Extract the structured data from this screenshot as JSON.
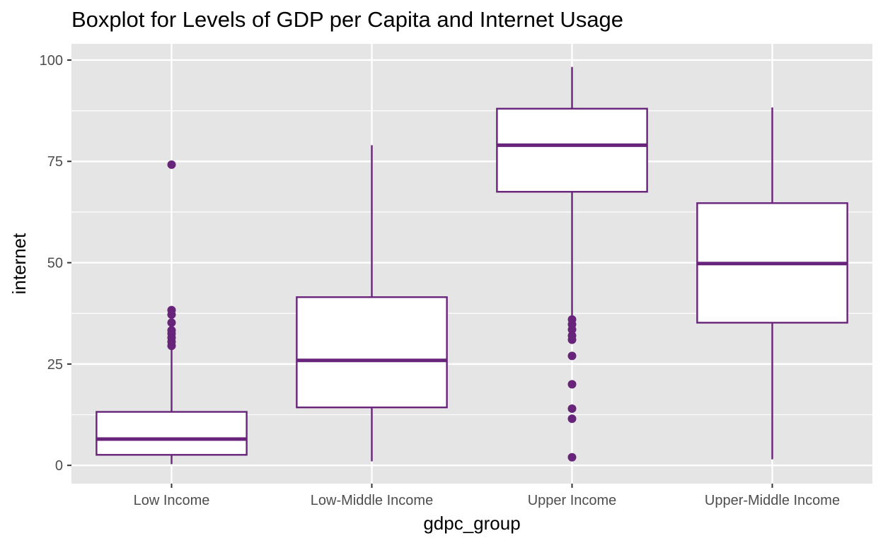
{
  "chart_data": {
    "type": "boxplot",
    "title": "Boxplot for Levels of GDP per Capita and Internet Usage",
    "xlabel": "gdpc_group",
    "ylabel": "internet",
    "categories": [
      "Low Income",
      "Low-Middle Income",
      "Upper Income",
      "Upper-Middle Income"
    ],
    "ylim": [
      -4.5,
      104
    ],
    "yticks": [
      0,
      25,
      50,
      75,
      100
    ],
    "grid": true,
    "colors": {
      "panel": "#e5e5e5",
      "grid": "#ffffff",
      "box_line": "#68237a",
      "box_fill": "#ffffff",
      "tick_text": "#4d4d4d"
    },
    "boxes": [
      {
        "category": "Low Income",
        "min": 0.3,
        "q1": 2.6,
        "median": 6.5,
        "q3": 13.2,
        "max": 28.5,
        "outliers": [
          29.5,
          30.5,
          31.5,
          32.5,
          33.3,
          35.2,
          37.2,
          38.3,
          74.2
        ]
      },
      {
        "category": "Low-Middle Income",
        "min": 1.0,
        "q1": 14.3,
        "median": 25.9,
        "q3": 41.5,
        "max": 79.0,
        "outliers": []
      },
      {
        "category": "Upper Income",
        "min": 37.0,
        "q1": 67.5,
        "median": 79.0,
        "q3": 88.0,
        "max": 98.3,
        "outliers": [
          2.0,
          11.5,
          14.0,
          20.0,
          27.0,
          31.0,
          32.0,
          33.5,
          34.8,
          36.0
        ]
      },
      {
        "category": "Upper-Middle Income",
        "min": 1.5,
        "q1": 35.2,
        "median": 49.8,
        "q3": 64.7,
        "max": 88.3,
        "outliers": []
      }
    ]
  }
}
